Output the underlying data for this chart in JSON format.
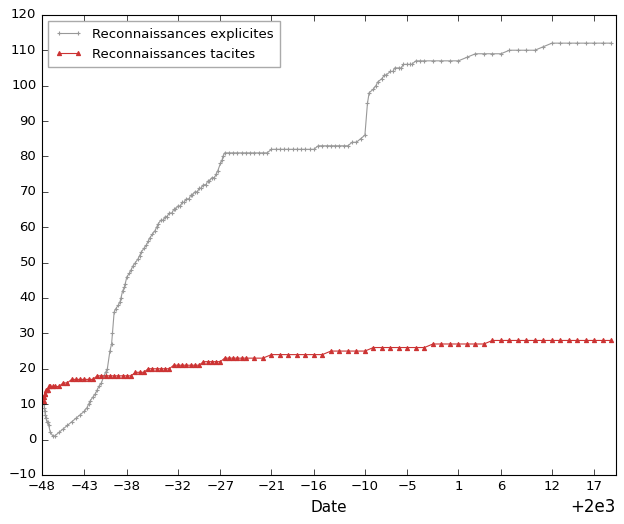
{
  "explicit": [
    [
      1952.25,
      10
    ],
    [
      1952.3,
      9
    ],
    [
      1952.35,
      8
    ],
    [
      1952.4,
      7
    ],
    [
      1952.45,
      6
    ],
    [
      1952.5,
      6
    ],
    [
      1952.6,
      5
    ],
    [
      1952.7,
      5
    ],
    [
      1952.8,
      4
    ],
    [
      1953.0,
      2
    ],
    [
      1953.3,
      1
    ],
    [
      1953.5,
      1
    ],
    [
      1954.0,
      2
    ],
    [
      1954.5,
      3
    ],
    [
      1955.0,
      4
    ],
    [
      1955.5,
      5
    ],
    [
      1956.0,
      6
    ],
    [
      1956.5,
      7
    ],
    [
      1957.0,
      8
    ],
    [
      1957.3,
      9
    ],
    [
      1957.5,
      10
    ],
    [
      1957.7,
      11
    ],
    [
      1958.0,
      12
    ],
    [
      1958.3,
      13
    ],
    [
      1958.5,
      14
    ],
    [
      1958.7,
      15
    ],
    [
      1959.0,
      16
    ],
    [
      1959.3,
      18
    ],
    [
      1959.5,
      19
    ],
    [
      1959.7,
      20
    ],
    [
      1960.0,
      25
    ],
    [
      1960.2,
      27
    ],
    [
      1960.3,
      30
    ],
    [
      1960.5,
      36
    ],
    [
      1960.7,
      37
    ],
    [
      1961.0,
      38
    ],
    [
      1961.2,
      39
    ],
    [
      1961.3,
      40
    ],
    [
      1961.5,
      42
    ],
    [
      1961.7,
      43
    ],
    [
      1961.8,
      44
    ],
    [
      1962.0,
      46
    ],
    [
      1962.3,
      47
    ],
    [
      1962.5,
      48
    ],
    [
      1962.7,
      49
    ],
    [
      1963.0,
      50
    ],
    [
      1963.3,
      51
    ],
    [
      1963.5,
      52
    ],
    [
      1963.7,
      53
    ],
    [
      1964.0,
      54
    ],
    [
      1964.3,
      55
    ],
    [
      1964.5,
      56
    ],
    [
      1964.7,
      57
    ],
    [
      1965.0,
      58
    ],
    [
      1965.3,
      59
    ],
    [
      1965.5,
      60
    ],
    [
      1965.7,
      61
    ],
    [
      1966.0,
      62
    ],
    [
      1966.3,
      62
    ],
    [
      1966.5,
      63
    ],
    [
      1966.7,
      63
    ],
    [
      1967.0,
      64
    ],
    [
      1967.3,
      64
    ],
    [
      1967.5,
      65
    ],
    [
      1967.7,
      65
    ],
    [
      1968.0,
      66
    ],
    [
      1968.3,
      66
    ],
    [
      1968.5,
      67
    ],
    [
      1968.7,
      67
    ],
    [
      1969.0,
      68
    ],
    [
      1969.3,
      68
    ],
    [
      1969.5,
      69
    ],
    [
      1969.7,
      69
    ],
    [
      1970.0,
      70
    ],
    [
      1970.3,
      70
    ],
    [
      1970.5,
      71
    ],
    [
      1970.7,
      71
    ],
    [
      1971.0,
      72
    ],
    [
      1971.3,
      72
    ],
    [
      1971.5,
      73
    ],
    [
      1971.7,
      73
    ],
    [
      1972.0,
      74
    ],
    [
      1972.3,
      74
    ],
    [
      1972.5,
      75
    ],
    [
      1972.7,
      76
    ],
    [
      1973.0,
      78
    ],
    [
      1973.2,
      79
    ],
    [
      1973.3,
      80
    ],
    [
      1973.5,
      81
    ],
    [
      1974.0,
      81
    ],
    [
      1974.5,
      81
    ],
    [
      1975.0,
      81
    ],
    [
      1975.5,
      81
    ],
    [
      1976.0,
      81
    ],
    [
      1976.5,
      81
    ],
    [
      1977.0,
      81
    ],
    [
      1977.5,
      81
    ],
    [
      1978.0,
      81
    ],
    [
      1978.5,
      81
    ],
    [
      1979.0,
      82
    ],
    [
      1979.5,
      82
    ],
    [
      1980.0,
      82
    ],
    [
      1980.5,
      82
    ],
    [
      1981.0,
      82
    ],
    [
      1981.5,
      82
    ],
    [
      1982.0,
      82
    ],
    [
      1982.5,
      82
    ],
    [
      1983.0,
      82
    ],
    [
      1983.5,
      82
    ],
    [
      1984.0,
      82
    ],
    [
      1984.5,
      83
    ],
    [
      1985.0,
      83
    ],
    [
      1985.5,
      83
    ],
    [
      1986.0,
      83
    ],
    [
      1986.5,
      83
    ],
    [
      1987.0,
      83
    ],
    [
      1987.5,
      83
    ],
    [
      1988.0,
      83
    ],
    [
      1988.5,
      84
    ],
    [
      1989.0,
      84
    ],
    [
      1989.5,
      85
    ],
    [
      1990.0,
      86
    ],
    [
      1990.3,
      95
    ],
    [
      1990.5,
      98
    ],
    [
      1991.0,
      99
    ],
    [
      1991.3,
      100
    ],
    [
      1991.5,
      101
    ],
    [
      1992.0,
      102
    ],
    [
      1992.3,
      103
    ],
    [
      1992.5,
      103
    ],
    [
      1993.0,
      104
    ],
    [
      1993.3,
      104
    ],
    [
      1993.5,
      105
    ],
    [
      1994.0,
      105
    ],
    [
      1994.3,
      105
    ],
    [
      1994.5,
      106
    ],
    [
      1995.0,
      106
    ],
    [
      1995.3,
      106
    ],
    [
      1995.5,
      106
    ],
    [
      1996.0,
      107
    ],
    [
      1996.5,
      107
    ],
    [
      1997.0,
      107
    ],
    [
      1998.0,
      107
    ],
    [
      1999.0,
      107
    ],
    [
      2000.0,
      107
    ],
    [
      2001.0,
      107
    ],
    [
      2002.0,
      108
    ],
    [
      2003.0,
      109
    ],
    [
      2004.0,
      109
    ],
    [
      2005.0,
      109
    ],
    [
      2006.0,
      109
    ],
    [
      2007.0,
      110
    ],
    [
      2008.0,
      110
    ],
    [
      2009.0,
      110
    ],
    [
      2010.0,
      110
    ],
    [
      2011.0,
      111
    ],
    [
      2012.0,
      112
    ],
    [
      2013.0,
      112
    ],
    [
      2014.0,
      112
    ],
    [
      2015.0,
      112
    ],
    [
      2016.0,
      112
    ],
    [
      2017.0,
      112
    ],
    [
      2018.0,
      112
    ],
    [
      2019.0,
      112
    ]
  ],
  "tacite": [
    [
      1952.25,
      11
    ],
    [
      1952.3,
      12
    ],
    [
      1952.35,
      13
    ],
    [
      1952.4,
      13
    ],
    [
      1952.5,
      14
    ],
    [
      1952.6,
      14
    ],
    [
      1952.7,
      14
    ],
    [
      1952.8,
      15
    ],
    [
      1953.0,
      15
    ],
    [
      1953.3,
      15
    ],
    [
      1953.5,
      15
    ],
    [
      1954.0,
      15
    ],
    [
      1954.5,
      16
    ],
    [
      1955.0,
      16
    ],
    [
      1955.5,
      17
    ],
    [
      1956.0,
      17
    ],
    [
      1956.5,
      17
    ],
    [
      1957.0,
      17
    ],
    [
      1957.5,
      17
    ],
    [
      1958.0,
      17
    ],
    [
      1958.5,
      18
    ],
    [
      1959.0,
      18
    ],
    [
      1959.5,
      18
    ],
    [
      1960.0,
      18
    ],
    [
      1960.5,
      18
    ],
    [
      1961.0,
      18
    ],
    [
      1961.5,
      18
    ],
    [
      1962.0,
      18
    ],
    [
      1962.5,
      18
    ],
    [
      1963.0,
      19
    ],
    [
      1963.5,
      19
    ],
    [
      1964.0,
      19
    ],
    [
      1964.5,
      20
    ],
    [
      1965.0,
      20
    ],
    [
      1965.5,
      20
    ],
    [
      1966.0,
      20
    ],
    [
      1966.5,
      20
    ],
    [
      1967.0,
      20
    ],
    [
      1967.5,
      21
    ],
    [
      1968.0,
      21
    ],
    [
      1968.5,
      21
    ],
    [
      1969.0,
      21
    ],
    [
      1969.5,
      21
    ],
    [
      1970.0,
      21
    ],
    [
      1970.5,
      21
    ],
    [
      1971.0,
      22
    ],
    [
      1971.5,
      22
    ],
    [
      1972.0,
      22
    ],
    [
      1972.5,
      22
    ],
    [
      1973.0,
      22
    ],
    [
      1973.5,
      23
    ],
    [
      1974.0,
      23
    ],
    [
      1974.5,
      23
    ],
    [
      1975.0,
      23
    ],
    [
      1975.5,
      23
    ],
    [
      1976.0,
      23
    ],
    [
      1977.0,
      23
    ],
    [
      1978.0,
      23
    ],
    [
      1979.0,
      24
    ],
    [
      1980.0,
      24
    ],
    [
      1981.0,
      24
    ],
    [
      1982.0,
      24
    ],
    [
      1983.0,
      24
    ],
    [
      1984.0,
      24
    ],
    [
      1985.0,
      24
    ],
    [
      1986.0,
      25
    ],
    [
      1987.0,
      25
    ],
    [
      1988.0,
      25
    ],
    [
      1989.0,
      25
    ],
    [
      1990.0,
      25
    ],
    [
      1991.0,
      26
    ],
    [
      1992.0,
      26
    ],
    [
      1993.0,
      26
    ],
    [
      1994.0,
      26
    ],
    [
      1995.0,
      26
    ],
    [
      1996.0,
      26
    ],
    [
      1997.0,
      26
    ],
    [
      1998.0,
      27
    ],
    [
      1999.0,
      27
    ],
    [
      2000.0,
      27
    ],
    [
      2001.0,
      27
    ],
    [
      2002.0,
      27
    ],
    [
      2003.0,
      27
    ],
    [
      2004.0,
      27
    ],
    [
      2005.0,
      28
    ],
    [
      2006.0,
      28
    ],
    [
      2007.0,
      28
    ],
    [
      2008.0,
      28
    ],
    [
      2009.0,
      28
    ],
    [
      2010.0,
      28
    ],
    [
      2011.0,
      28
    ],
    [
      2012.0,
      28
    ],
    [
      2013.0,
      28
    ],
    [
      2014.0,
      28
    ],
    [
      2015.0,
      28
    ],
    [
      2016.0,
      28
    ],
    [
      2017.0,
      28
    ],
    [
      2018.0,
      28
    ],
    [
      2019.0,
      28
    ]
  ],
  "explicit_color": "#999999",
  "tacite_color": "#cc3333",
  "legend_label_explicit": "Reconnaissances explicites",
  "legend_label_tacite": "Reconnaissances tacites",
  "xlabel": "Date",
  "ylim": [
    -10,
    120
  ],
  "xlim": [
    1952,
    2019.5
  ],
  "yticks": [
    -10,
    0,
    10,
    20,
    30,
    40,
    50,
    60,
    70,
    80,
    90,
    100,
    110,
    120
  ],
  "xticks": [
    1952,
    1957,
    1962,
    1968,
    1973,
    1979,
    1984,
    1990,
    1995,
    2001,
    2006,
    2012,
    2017
  ]
}
